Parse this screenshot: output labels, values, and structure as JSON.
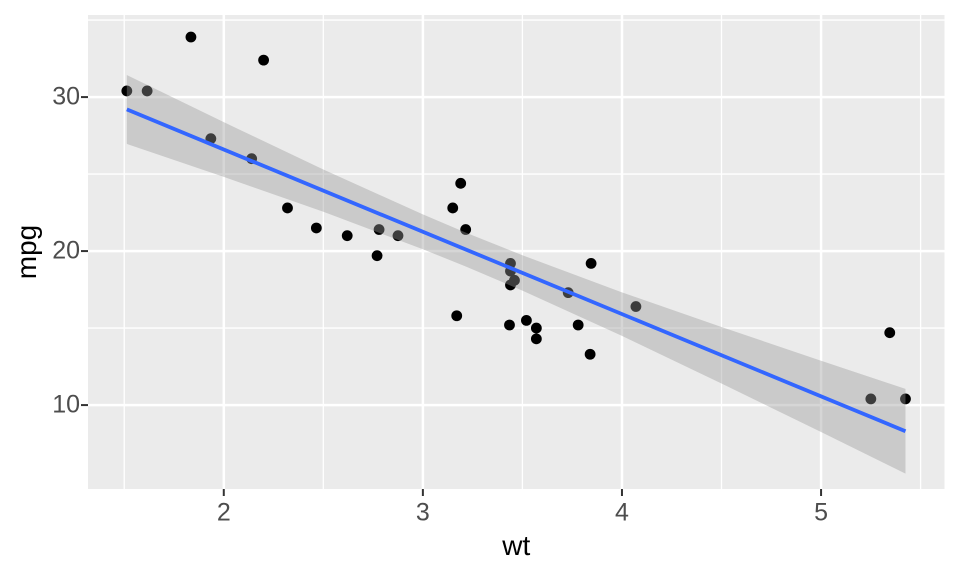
{
  "chart_data": {
    "type": "scatter",
    "title": "",
    "xlabel": "wt",
    "ylabel": "mpg",
    "xlim": [
      1.318,
      5.62
    ],
    "ylim": [
      4.55,
      35.33
    ],
    "x_ticks": [
      "2",
      "3",
      "4",
      "5"
    ],
    "x_tick_values": [
      2,
      3,
      4,
      5
    ],
    "x_minor_ticks": [
      1.5,
      2.5,
      3.5,
      4.5,
      5.5
    ],
    "y_ticks": [
      "10",
      "20",
      "30"
    ],
    "y_tick_values": [
      10,
      20,
      30
    ],
    "y_minor_ticks": [
      15,
      25,
      35
    ],
    "grid": true,
    "legend": false,
    "points": [
      {
        "wt": 2.62,
        "mpg": 21.0
      },
      {
        "wt": 2.875,
        "mpg": 21.0
      },
      {
        "wt": 2.32,
        "mpg": 22.8
      },
      {
        "wt": 3.215,
        "mpg": 21.4
      },
      {
        "wt": 3.44,
        "mpg": 18.7
      },
      {
        "wt": 3.46,
        "mpg": 18.1
      },
      {
        "wt": 3.57,
        "mpg": 14.3
      },
      {
        "wt": 3.19,
        "mpg": 24.4
      },
      {
        "wt": 3.15,
        "mpg": 22.8
      },
      {
        "wt": 3.44,
        "mpg": 19.2
      },
      {
        "wt": 3.44,
        "mpg": 17.8
      },
      {
        "wt": 4.07,
        "mpg": 16.4
      },
      {
        "wt": 3.73,
        "mpg": 17.3
      },
      {
        "wt": 3.78,
        "mpg": 15.2
      },
      {
        "wt": 5.25,
        "mpg": 10.4
      },
      {
        "wt": 5.424,
        "mpg": 10.4
      },
      {
        "wt": 5.345,
        "mpg": 14.7
      },
      {
        "wt": 2.2,
        "mpg": 32.4
      },
      {
        "wt": 1.615,
        "mpg": 30.4
      },
      {
        "wt": 1.835,
        "mpg": 33.9
      },
      {
        "wt": 2.465,
        "mpg": 21.5
      },
      {
        "wt": 3.52,
        "mpg": 15.5
      },
      {
        "wt": 3.435,
        "mpg": 15.2
      },
      {
        "wt": 3.84,
        "mpg": 13.3
      },
      {
        "wt": 3.845,
        "mpg": 19.2
      },
      {
        "wt": 1.935,
        "mpg": 27.3
      },
      {
        "wt": 2.14,
        "mpg": 26.0
      },
      {
        "wt": 1.513,
        "mpg": 30.4
      },
      {
        "wt": 3.17,
        "mpg": 15.8
      },
      {
        "wt": 2.77,
        "mpg": 19.7
      },
      {
        "wt": 3.57,
        "mpg": 15.0
      },
      {
        "wt": 2.78,
        "mpg": 21.4
      }
    ],
    "regression_line": {
      "method": "lm",
      "intercept": 37.285,
      "slope": -5.344,
      "x_start": 1.513,
      "x_end": 5.424,
      "y_start": 29.2,
      "y_end": 8.3
    },
    "confidence_ribbon": [
      {
        "x": 1.513,
        "lower": 26.96,
        "upper": 31.43
      },
      {
        "x": 2.0,
        "lower": 24.82,
        "upper": 28.37
      },
      {
        "x": 2.5,
        "lower": 22.55,
        "upper": 25.3
      },
      {
        "x": 3.0,
        "lower": 20.12,
        "upper": 22.38
      },
      {
        "x": 3.217,
        "lower": 18.99,
        "upper": 21.19
      },
      {
        "x": 3.5,
        "lower": 17.43,
        "upper": 19.73
      },
      {
        "x": 4.0,
        "lower": 14.49,
        "upper": 17.32
      },
      {
        "x": 4.5,
        "lower": 11.4,
        "upper": 15.07
      },
      {
        "x": 5.0,
        "lower": 8.25,
        "upper": 12.88
      },
      {
        "x": 5.424,
        "lower": 5.55,
        "upper": 11.05
      }
    ],
    "colors": {
      "figure_background": "#FFFFFF",
      "panel_background": "#EBEBEB",
      "grid": "#FFFFFF",
      "point": "#000000",
      "smooth_line": "#3366FF",
      "ribbon_fill": "#999999",
      "ribbon_opacity": 0.4,
      "tick_mark": "#333333",
      "tick_label": "#4D4D4D",
      "axis_title": "#000000"
    }
  }
}
